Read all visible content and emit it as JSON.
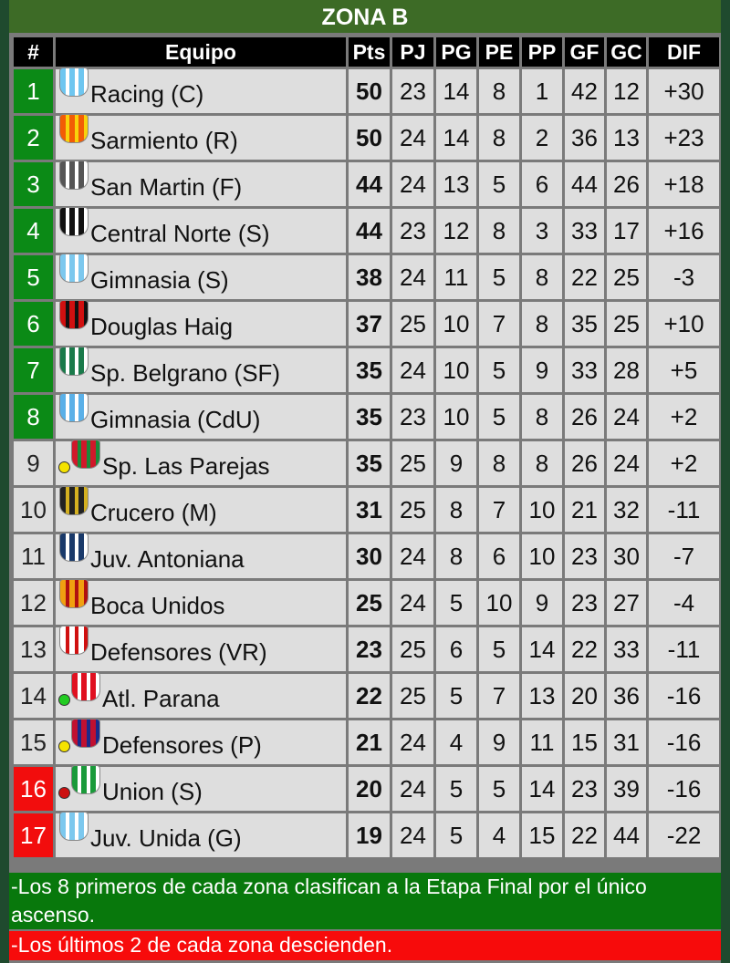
{
  "title": "ZONA B",
  "headers": [
    "#",
    "Equipo",
    "Pts",
    "PJ",
    "PG",
    "PE",
    "PP",
    "GF",
    "GC",
    "DIF"
  ],
  "colors": {
    "qualify": "#0b8a16",
    "relegate": "#f20d0d",
    "header": "#000000",
    "title_bar": "#3d6b26"
  },
  "rows": [
    {
      "pos": "1",
      "team": "Racing (C)",
      "status": "qualify",
      "logo": [
        "#6ec6f0",
        "#ffffff"
      ],
      "pts": "50",
      "pj": "23",
      "pg": "14",
      "pe": "8",
      "pp": "1",
      "gf": "42",
      "gc": "12",
      "dif": "+30"
    },
    {
      "pos": "2",
      "team": "Sarmiento (R)",
      "status": "qualify",
      "logo": [
        "#f25c05",
        "#f8d20c"
      ],
      "pts": "50",
      "pj": "24",
      "pg": "14",
      "pe": "8",
      "pp": "2",
      "gf": "36",
      "gc": "13",
      "dif": "+23"
    },
    {
      "pos": "3",
      "team": "San Martin (F)",
      "status": "qualify",
      "logo": [
        "#555555",
        "#ffffff"
      ],
      "pts": "44",
      "pj": "24",
      "pg": "13",
      "pe": "5",
      "pp": "6",
      "gf": "44",
      "gc": "26",
      "dif": "+18"
    },
    {
      "pos": "4",
      "team": "Central Norte (S)",
      "status": "qualify",
      "logo": [
        "#111111",
        "#ffffff"
      ],
      "pts": "44",
      "pj": "23",
      "pg": "12",
      "pe": "8",
      "pp": "3",
      "gf": "33",
      "gc": "17",
      "dif": "+16"
    },
    {
      "pos": "5",
      "team": "Gimnasia (S)",
      "status": "qualify",
      "logo": [
        "#7cc8ee",
        "#ffffff"
      ],
      "pts": "38",
      "pj": "24",
      "pg": "11",
      "pe": "5",
      "pp": "8",
      "gf": "22",
      "gc": "25",
      "dif": "-3"
    },
    {
      "pos": "6",
      "team": "Douglas Haig",
      "status": "qualify",
      "logo": [
        "#d01010",
        "#111111"
      ],
      "pts": "37",
      "pj": "25",
      "pg": "10",
      "pe": "7",
      "pp": "8",
      "gf": "35",
      "gc": "25",
      "dif": "+10"
    },
    {
      "pos": "7",
      "team": "Sp. Belgrano (SF)",
      "status": "qualify",
      "logo": [
        "#1a7a4a",
        "#ffffff"
      ],
      "pts": "35",
      "pj": "24",
      "pg": "10",
      "pe": "5",
      "pp": "9",
      "gf": "33",
      "gc": "28",
      "dif": "+5"
    },
    {
      "pos": "8",
      "team": "Gimnasia (CdU)",
      "status": "qualify",
      "logo": [
        "#5ab0e8",
        "#ffffff"
      ],
      "pts": "35",
      "pj": "23",
      "pg": "10",
      "pe": "5",
      "pp": "8",
      "gf": "26",
      "gc": "24",
      "dif": "+2"
    },
    {
      "pos": "9",
      "team": "Sp. Las Parejas",
      "status": "",
      "dot": "#f5e300",
      "logo": [
        "#d0182a",
        "#1a8a3a"
      ],
      "pts": "35",
      "pj": "25",
      "pg": "9",
      "pe": "8",
      "pp": "8",
      "gf": "26",
      "gc": "24",
      "dif": "+2"
    },
    {
      "pos": "10",
      "team": "Crucero (M)",
      "status": "",
      "logo": [
        "#222222",
        "#d4b020"
      ],
      "pts": "31",
      "pj": "25",
      "pg": "8",
      "pe": "7",
      "pp": "10",
      "gf": "21",
      "gc": "32",
      "dif": "-11"
    },
    {
      "pos": "11",
      "team": "Juv. Antoniana",
      "status": "",
      "logo": [
        "#1a3a6a",
        "#ffffff"
      ],
      "pts": "30",
      "pj": "24",
      "pg": "8",
      "pe": "6",
      "pp": "10",
      "gf": "23",
      "gc": "30",
      "dif": "-7"
    },
    {
      "pos": "12",
      "team": "Boca Unidos",
      "status": "",
      "logo": [
        "#f0a010",
        "#b01010"
      ],
      "pts": "25",
      "pj": "24",
      "pg": "5",
      "pe": "10",
      "pp": "9",
      "gf": "23",
      "gc": "27",
      "dif": "-4"
    },
    {
      "pos": "13",
      "team": "Defensores (VR)",
      "status": "",
      "logo": [
        "#ffffff",
        "#d01010"
      ],
      "pts": "23",
      "pj": "25",
      "pg": "6",
      "pe": "5",
      "pp": "14",
      "gf": "22",
      "gc": "33",
      "dif": "-11"
    },
    {
      "pos": "14",
      "team": "Atl. Parana",
      "status": "",
      "dot": "#22cc22",
      "logo": [
        "#e01020",
        "#ffffff"
      ],
      "pts": "22",
      "pj": "25",
      "pg": "5",
      "pe": "7",
      "pp": "13",
      "gf": "20",
      "gc": "36",
      "dif": "-16"
    },
    {
      "pos": "15",
      "team": "Defensores (P)",
      "status": "",
      "dot": "#f5e300",
      "logo": [
        "#c01030",
        "#1a2a8a"
      ],
      "pts": "21",
      "pj": "24",
      "pg": "4",
      "pe": "9",
      "pp": "11",
      "gf": "15",
      "gc": "31",
      "dif": "-16"
    },
    {
      "pos": "16",
      "team": "Union (S)",
      "status": "relegate",
      "dot": "#cc1010",
      "logo": [
        "#1a9a3a",
        "#ffffff"
      ],
      "pts": "20",
      "pj": "24",
      "pg": "5",
      "pe": "5",
      "pp": "14",
      "gf": "23",
      "gc": "39",
      "dif": "-16"
    },
    {
      "pos": "17",
      "team": "Juv. Unida (G)",
      "status": "relegate",
      "logo": [
        "#7cc8ee",
        "#ffffff"
      ],
      "pts": "19",
      "pj": "24",
      "pg": "5",
      "pe": "4",
      "pp": "15",
      "gf": "22",
      "gc": "44",
      "dif": "-22"
    }
  ],
  "notes": [
    "-Los 8 primeros de cada zona clasifican a la Etapa Final por el único ascenso.",
    "-Los últimos 2 de cada zona descienden."
  ]
}
